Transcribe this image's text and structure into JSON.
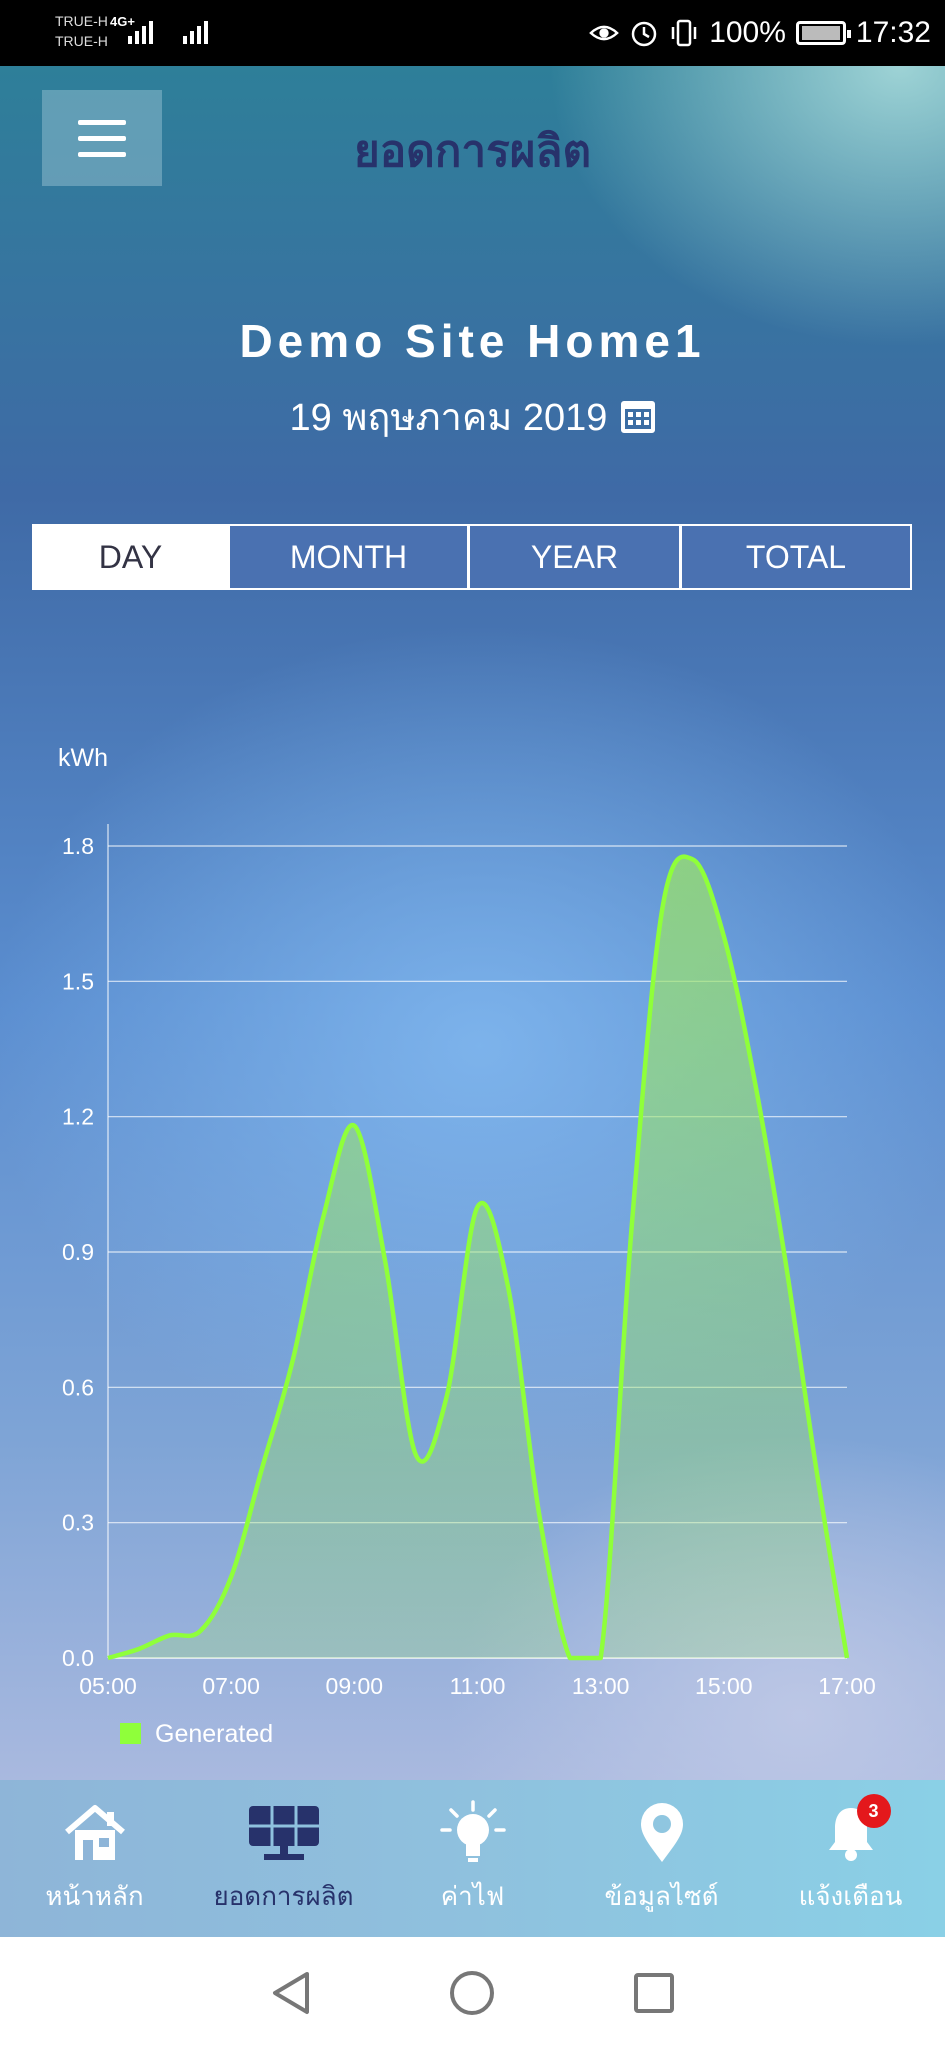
{
  "status_bar": {
    "carrier_1": "TRUE-H",
    "carrier_2": "TRUE-H",
    "network": "4G+",
    "battery": "100%",
    "time": "17:32"
  },
  "header": {
    "title": "ยอดการผลิต",
    "menu_icon": "hamburger-icon"
  },
  "site": {
    "name": "Demo Site Home1",
    "date": "19 พฤษภาคม 2019",
    "calendar_icon": "calendar-icon"
  },
  "tabs": [
    {
      "label": "DAY",
      "active": true
    },
    {
      "label": "MONTH",
      "active": false
    },
    {
      "label": "YEAR",
      "active": false
    },
    {
      "label": "TOTAL",
      "active": false
    }
  ],
  "chart_data": {
    "type": "area",
    "ylabel": "kWh",
    "x_ticks": [
      "05:00",
      "07:00",
      "09:00",
      "11:00",
      "13:00",
      "15:00",
      "17:00"
    ],
    "y_ticks": [
      "0.0",
      "0.3",
      "0.6",
      "0.9",
      "1.2",
      "1.5",
      "1.8"
    ],
    "ylim": [
      0,
      1.8
    ],
    "xlim_hours": [
      5,
      17
    ],
    "grid": true,
    "legend": "bottom-left",
    "series": [
      {
        "name": "Generated",
        "color": "#8fff3a",
        "points": [
          [
            5.0,
            0.0
          ],
          [
            5.5,
            0.02
          ],
          [
            6.0,
            0.05
          ],
          [
            6.5,
            0.06
          ],
          [
            7.0,
            0.18
          ],
          [
            7.5,
            0.42
          ],
          [
            8.0,
            0.66
          ],
          [
            8.5,
            0.98
          ],
          [
            9.0,
            1.18
          ],
          [
            9.5,
            0.88
          ],
          [
            10.0,
            0.45
          ],
          [
            10.5,
            0.58
          ],
          [
            11.0,
            1.0
          ],
          [
            11.5,
            0.82
          ],
          [
            12.0,
            0.32
          ],
          [
            12.5,
            0.0
          ],
          [
            13.0,
            0.0
          ],
          [
            13.5,
            0.95
          ],
          [
            14.0,
            1.66
          ],
          [
            14.5,
            1.77
          ],
          [
            15.0,
            1.6
          ],
          [
            15.5,
            1.28
          ],
          [
            16.0,
            0.88
          ],
          [
            16.5,
            0.42
          ],
          [
            17.0,
            0.0
          ]
        ]
      }
    ]
  },
  "bottom_nav": [
    {
      "label": "หน้าหลัก",
      "icon": "home-icon",
      "active": false
    },
    {
      "label": "ยอดการผลิต",
      "icon": "solar-panel-icon",
      "active": true
    },
    {
      "label": "ค่าไฟ",
      "icon": "light-bulb-icon",
      "active": false
    },
    {
      "label": "ข้อมูลไซต์",
      "icon": "location-pin-icon",
      "active": false
    },
    {
      "label": "แจ้งเตือน",
      "icon": "bell-icon",
      "active": false,
      "badge": "3"
    }
  ],
  "colors": {
    "accent": "#27326b",
    "series": "#8fff3a",
    "badge": "#e4181c"
  }
}
